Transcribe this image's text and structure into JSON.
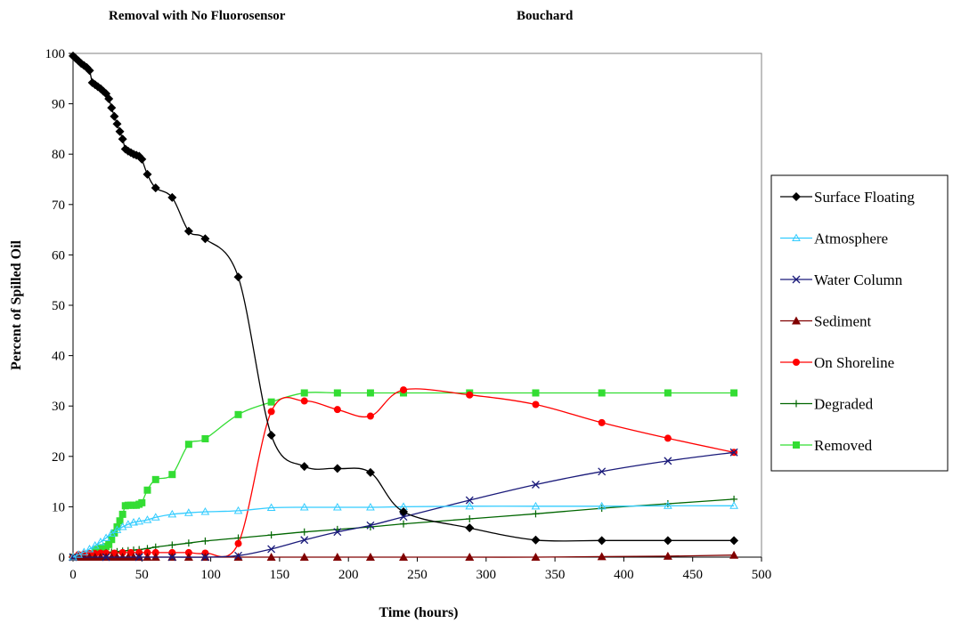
{
  "header": {
    "title_left": "Removal with No Fluorosensor",
    "title_right": "Bouchard"
  },
  "chart_data": {
    "type": "line",
    "xlabel": "Time (hours)",
    "ylabel": "Percent of Spilled Oil",
    "xlim": [
      0,
      500
    ],
    "ylim": [
      0,
      100
    ],
    "xticks": [
      0,
      50,
      100,
      150,
      200,
      250,
      300,
      350,
      400,
      450,
      500
    ],
    "yticks": [
      0,
      10,
      20,
      30,
      40,
      50,
      60,
      70,
      80,
      90,
      100
    ],
    "grid": false,
    "legend_position": "right",
    "series": [
      {
        "name": "Surface Floating",
        "color": "#000000",
        "marker": "diamond",
        "points": [
          [
            0,
            99.5
          ],
          [
            2,
            99
          ],
          [
            4,
            98.5
          ],
          [
            6,
            98
          ],
          [
            8,
            97.6
          ],
          [
            10,
            97.2
          ],
          [
            12,
            96.6
          ],
          [
            14,
            94.2
          ],
          [
            16,
            93.8
          ],
          [
            18,
            93.4
          ],
          [
            20,
            93
          ],
          [
            22,
            92.5
          ],
          [
            24,
            92
          ],
          [
            26,
            91
          ],
          [
            28,
            89.2
          ],
          [
            30,
            87.5
          ],
          [
            32,
            86
          ],
          [
            34,
            84.5
          ],
          [
            36,
            83
          ],
          [
            38,
            81
          ],
          [
            40,
            80.6
          ],
          [
            42,
            80.3
          ],
          [
            44,
            80
          ],
          [
            46,
            79.8
          ],
          [
            48,
            79.6
          ],
          [
            50,
            79
          ],
          [
            54,
            76
          ],
          [
            60,
            73.3
          ],
          [
            72,
            71.4
          ],
          [
            84,
            64.7
          ],
          [
            96,
            63.2
          ],
          [
            120,
            55.6
          ],
          [
            144,
            24.2
          ],
          [
            168,
            18
          ],
          [
            192,
            17.6
          ],
          [
            216,
            16.8
          ],
          [
            240,
            9
          ],
          [
            288,
            5.8
          ],
          [
            336,
            3.4
          ],
          [
            384,
            3.3
          ],
          [
            432,
            3.3
          ],
          [
            480,
            3.3
          ]
        ]
      },
      {
        "name": "Atmosphere",
        "color": "#33ccff",
        "marker": "triangle-open",
        "points": [
          [
            0,
            0
          ],
          [
            4,
            0.5
          ],
          [
            8,
            1
          ],
          [
            12,
            1.6
          ],
          [
            16,
            2.3
          ],
          [
            20,
            3
          ],
          [
            24,
            3.8
          ],
          [
            28,
            4.7
          ],
          [
            32,
            5.4
          ],
          [
            36,
            6
          ],
          [
            40,
            6.5
          ],
          [
            44,
            6.9
          ],
          [
            48,
            7.1
          ],
          [
            54,
            7.4
          ],
          [
            60,
            7.9
          ],
          [
            72,
            8.5
          ],
          [
            84,
            8.8
          ],
          [
            96,
            9
          ],
          [
            120,
            9.2
          ],
          [
            144,
            9.8
          ],
          [
            168,
            9.9
          ],
          [
            192,
            9.9
          ],
          [
            216,
            9.9
          ],
          [
            240,
            10
          ],
          [
            288,
            10.1
          ],
          [
            336,
            10.1
          ],
          [
            384,
            10.1
          ],
          [
            432,
            10.2
          ],
          [
            480,
            10.2
          ]
        ]
      },
      {
        "name": "Water Column",
        "color": "#1a1a7a",
        "marker": "x",
        "points": [
          [
            0,
            0
          ],
          [
            24,
            0
          ],
          [
            48,
            0
          ],
          [
            72,
            0
          ],
          [
            96,
            0
          ],
          [
            120,
            0.3
          ],
          [
            144,
            1.6
          ],
          [
            168,
            3.4
          ],
          [
            192,
            5
          ],
          [
            216,
            6.3
          ],
          [
            240,
            8
          ],
          [
            288,
            11.3
          ],
          [
            336,
            14.4
          ],
          [
            384,
            17
          ],
          [
            432,
            19.1
          ],
          [
            480,
            20.8
          ]
        ]
      },
      {
        "name": "Sediment",
        "color": "#800000",
        "marker": "triangle",
        "points": [
          [
            0,
            0
          ],
          [
            4,
            0
          ],
          [
            8,
            0
          ],
          [
            12,
            0
          ],
          [
            16,
            0
          ],
          [
            20,
            0
          ],
          [
            24,
            0
          ],
          [
            28,
            0
          ],
          [
            32,
            0
          ],
          [
            36,
            0
          ],
          [
            40,
            0
          ],
          [
            44,
            0
          ],
          [
            48,
            0
          ],
          [
            54,
            0
          ],
          [
            60,
            0
          ],
          [
            72,
            0
          ],
          [
            84,
            0
          ],
          [
            96,
            0
          ],
          [
            120,
            0
          ],
          [
            144,
            0
          ],
          [
            168,
            0
          ],
          [
            192,
            0
          ],
          [
            216,
            0
          ],
          [
            240,
            0
          ],
          [
            288,
            0
          ],
          [
            336,
            0
          ],
          [
            384,
            0.1
          ],
          [
            432,
            0.2
          ],
          [
            480,
            0.4
          ]
        ]
      },
      {
        "name": "On Shoreline",
        "color": "#ff0000",
        "marker": "circle",
        "points": [
          [
            0,
            0
          ],
          [
            4,
            0.5
          ],
          [
            8,
            0.6
          ],
          [
            12,
            0.7
          ],
          [
            16,
            0.7
          ],
          [
            20,
            0.8
          ],
          [
            24,
            0.8
          ],
          [
            30,
            0.8
          ],
          [
            36,
            0.9
          ],
          [
            42,
            0.9
          ],
          [
            48,
            0.9
          ],
          [
            54,
            0.9
          ],
          [
            60,
            0.9
          ],
          [
            72,
            0.9
          ],
          [
            84,
            0.9
          ],
          [
            96,
            0.8
          ],
          [
            120,
            2.7
          ],
          [
            144,
            28.9
          ],
          [
            168,
            31
          ],
          [
            192,
            29.3
          ],
          [
            216,
            28
          ],
          [
            240,
            33.2
          ],
          [
            288,
            32.2
          ],
          [
            336,
            30.3
          ],
          [
            384,
            26.7
          ],
          [
            432,
            23.6
          ],
          [
            480,
            20.8
          ]
        ]
      },
      {
        "name": "Degraded",
        "color": "#006600",
        "marker": "plus",
        "points": [
          [
            0,
            0
          ],
          [
            4,
            0.2
          ],
          [
            8,
            0.4
          ],
          [
            12,
            0.5
          ],
          [
            16,
            0.6
          ],
          [
            20,
            0.8
          ],
          [
            24,
            0.9
          ],
          [
            28,
            1
          ],
          [
            32,
            1.1
          ],
          [
            36,
            1.2
          ],
          [
            40,
            1.3
          ],
          [
            44,
            1.4
          ],
          [
            48,
            1.5
          ],
          [
            54,
            1.7
          ],
          [
            60,
            2
          ],
          [
            72,
            2.4
          ],
          [
            84,
            2.8
          ],
          [
            96,
            3.2
          ],
          [
            120,
            3.8
          ],
          [
            144,
            4.4
          ],
          [
            168,
            5
          ],
          [
            192,
            5.5
          ],
          [
            216,
            6
          ],
          [
            240,
            6.6
          ],
          [
            288,
            7.6
          ],
          [
            336,
            8.6
          ],
          [
            384,
            9.7
          ],
          [
            432,
            10.6
          ],
          [
            480,
            11.5
          ]
        ]
      },
      {
        "name": "Removed",
        "color": "#33dd33",
        "marker": "square",
        "points": [
          [
            0,
            0
          ],
          [
            2,
            0
          ],
          [
            4,
            0
          ],
          [
            6,
            0
          ],
          [
            8,
            0
          ],
          [
            10,
            0
          ],
          [
            12,
            0
          ],
          [
            14,
            0
          ],
          [
            16,
            1.3
          ],
          [
            18,
            1.5
          ],
          [
            20,
            1.7
          ],
          [
            22,
            1.9
          ],
          [
            24,
            2.1
          ],
          [
            26,
            2.5
          ],
          [
            28,
            3.5
          ],
          [
            30,
            4.8
          ],
          [
            32,
            6
          ],
          [
            34,
            7.2
          ],
          [
            36,
            8.5
          ],
          [
            38,
            10.2
          ],
          [
            40,
            10.3
          ],
          [
            42,
            10.3
          ],
          [
            44,
            10.3
          ],
          [
            46,
            10.3
          ],
          [
            48,
            10.5
          ],
          [
            50,
            10.8
          ],
          [
            54,
            13.3
          ],
          [
            60,
            15.4
          ],
          [
            72,
            16.4
          ],
          [
            84,
            22.4
          ],
          [
            96,
            23.5
          ],
          [
            120,
            28.3
          ],
          [
            144,
            30.8
          ],
          [
            168,
            32.6
          ],
          [
            192,
            32.6
          ],
          [
            216,
            32.6
          ],
          [
            240,
            32.6
          ],
          [
            288,
            32.6
          ],
          [
            336,
            32.6
          ],
          [
            384,
            32.6
          ],
          [
            432,
            32.6
          ],
          [
            480,
            32.6
          ]
        ]
      }
    ]
  }
}
